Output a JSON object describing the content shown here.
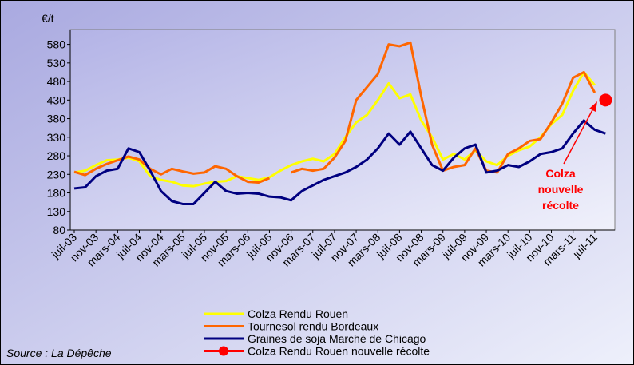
{
  "chart_data": {
    "type": "line",
    "title": "€/t",
    "source": "Source : La Dépêche",
    "categories": [
      "juil-03",
      null,
      "nov-03",
      null,
      "mars-04",
      null,
      "juil-04",
      null,
      "nov-04",
      null,
      "mars-05",
      null,
      "juil-05",
      null,
      "nov-05",
      null,
      "mars-06",
      null,
      "juil-06",
      null,
      "nov-06",
      null,
      "mars-07",
      null,
      "juil-07",
      null,
      "nov-07",
      null,
      "mars-08",
      null,
      "juil-08",
      null,
      "nov-08",
      null,
      "mars-09",
      null,
      "juil-09",
      null,
      "nov-09",
      null,
      "mars-10",
      null,
      "juil-10",
      null,
      "nov-10",
      null,
      "mars-11",
      null,
      "juil-11",
      null
    ],
    "series": [
      {
        "name": "Colza Rendu Rouen",
        "color": "#ffff00",
        "values": [
          235,
          240,
          255,
          268,
          270,
          275,
          265,
          225,
          215,
          210,
          200,
          198,
          205,
          210,
          212,
          225,
          220,
          215,
          222,
          240,
          255,
          265,
          272,
          265,
          285,
          330,
          370,
          390,
          430,
          475,
          435,
          445,
          375,
          330,
          270,
          285,
          270,
          295,
          265,
          255,
          280,
          295,
          305,
          330,
          365,
          390,
          455,
          505,
          470,
          null
        ]
      },
      {
        "name": "Tournesol rendu Bordeaux",
        "color": "#ff6600",
        "values": [
          237,
          228,
          245,
          258,
          268,
          278,
          270,
          245,
          230,
          245,
          238,
          232,
          235,
          252,
          245,
          225,
          210,
          208,
          220,
          null,
          235,
          245,
          240,
          245,
          275,
          320,
          430,
          465,
          500,
          580,
          575,
          585,
          440,
          310,
          240,
          250,
          255,
          300,
          240,
          235,
          285,
          300,
          320,
          325,
          370,
          420,
          490,
          505,
          450,
          null
        ]
      },
      {
        "name": "Graines de soja Marché de Chicago",
        "color": "#000080",
        "values": [
          192,
          195,
          225,
          240,
          245,
          300,
          290,
          240,
          185,
          158,
          150,
          150,
          180,
          210,
          185,
          178,
          180,
          178,
          170,
          168,
          160,
          185,
          200,
          215,
          225,
          235,
          250,
          270,
          300,
          340,
          310,
          345,
          300,
          255,
          240,
          275,
          300,
          310,
          235,
          240,
          255,
          250,
          265,
          285,
          290,
          300,
          340,
          375,
          350,
          340
        ]
      },
      {
        "name": "Colza Rendu Rouen nouvelle récolte",
        "color": "#ff0000",
        "markers": true,
        "values": [
          null,
          null,
          null,
          null,
          null,
          null,
          null,
          null,
          null,
          null,
          null,
          null,
          null,
          null,
          null,
          null,
          null,
          null,
          null,
          null,
          null,
          null,
          null,
          null,
          null,
          null,
          null,
          null,
          null,
          null,
          null,
          null,
          null,
          null,
          null,
          null,
          null,
          null,
          null,
          null,
          null,
          null,
          null,
          null,
          null,
          null,
          null,
          null,
          null,
          430
        ]
      }
    ],
    "annotation": {
      "lines": [
        "Colza",
        "nouvelle",
        "récolte"
      ],
      "color": "#ff0000"
    },
    "ylim": [
      80,
      620
    ],
    "yticks": [
      80,
      130,
      180,
      230,
      280,
      330,
      380,
      430,
      480,
      530,
      580
    ],
    "grid": false,
    "legend": "bottom"
  }
}
